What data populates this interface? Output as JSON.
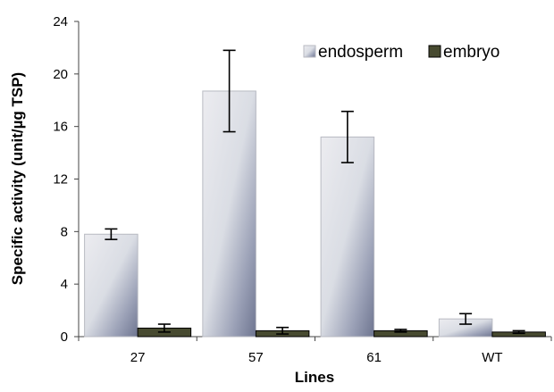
{
  "chart_data": {
    "type": "bar",
    "title": "",
    "xlabel": "Lines",
    "ylabel": "Specific activity (unit/µg TSP)",
    "categories": [
      "27",
      "57",
      "61",
      "WT"
    ],
    "ylim": [
      0,
      24
    ],
    "yticks": [
      "0",
      "4",
      "8",
      "12",
      "16",
      "20",
      "24"
    ],
    "grid": false,
    "legend_position": "top-right",
    "series": [
      {
        "name": "endosperm",
        "values": [
          7.8,
          18.7,
          15.2,
          1.35
        ],
        "error": [
          0.4,
          3.1,
          1.95,
          0.4
        ],
        "color": "#d9dce3",
        "shade_color": "#7f86a0"
      },
      {
        "name": "embryo",
        "values": [
          0.65,
          0.45,
          0.45,
          0.35
        ],
        "error": [
          0.3,
          0.25,
          0.1,
          0.1
        ],
        "color": "#474a30"
      }
    ]
  }
}
